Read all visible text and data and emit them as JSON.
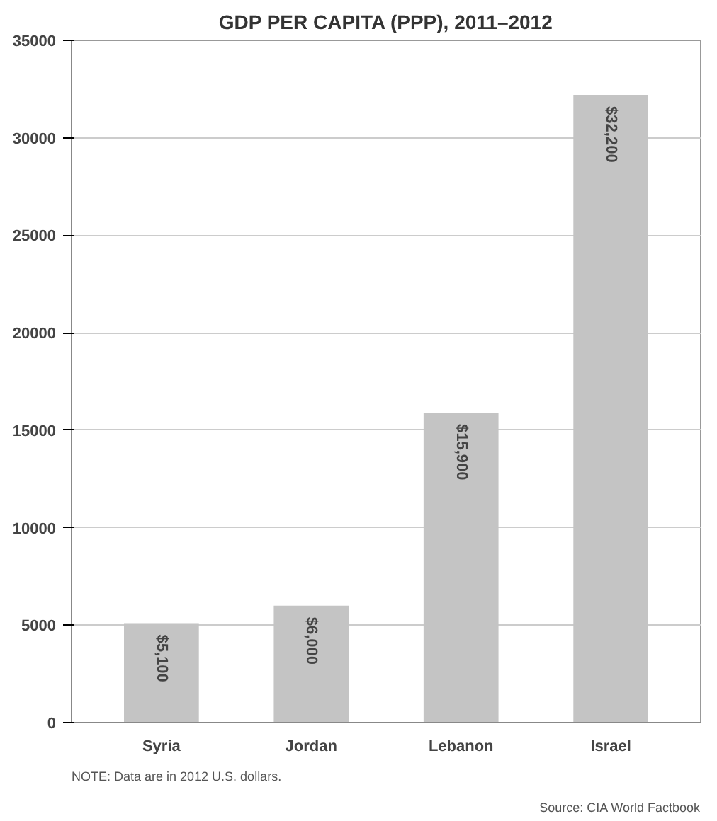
{
  "chart_data": {
    "type": "bar",
    "title": "GDP PER CAPITA (PPP), 2011–2012",
    "categories": [
      "Syria",
      "Jordan",
      "Lebanon",
      "Israel"
    ],
    "values": [
      5100,
      6000,
      15900,
      32200
    ],
    "value_labels": [
      "$5,100",
      "$6,000",
      "$15,900",
      "$32,200"
    ],
    "color": "#c4c4c4",
    "ylim": [
      0,
      35000
    ],
    "yticks": [
      0,
      5000,
      10000,
      15000,
      20000,
      25000,
      30000,
      35000
    ],
    "grid": "y",
    "annotations": [
      "NOTE: Data are in 2012 U.S. dollars.",
      "Source: CIA World Factbook"
    ]
  }
}
